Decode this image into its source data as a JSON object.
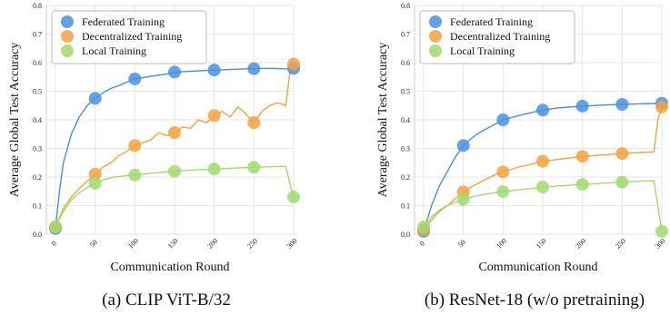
{
  "chart_data": [
    {
      "type": "line",
      "caption": "(a) CLIP ViT-B/32",
      "xlabel": "Communication Round",
      "ylabel": "Average Global Test Accuracy",
      "xlim": [
        0,
        300
      ],
      "ylim": [
        0.0,
        0.8
      ],
      "xticks": [
        "0",
        "50",
        "100",
        "150",
        "200",
        "250",
        "300"
      ],
      "yticks": [
        "0.0",
        "0.1",
        "0.2",
        "0.3",
        "0.4",
        "0.5",
        "0.6",
        "0.7",
        "0.8"
      ],
      "grid": true,
      "legend_position": "top-left",
      "series": [
        {
          "name": "Federated Training",
          "color": "#4a90e2",
          "x": [
            0,
            5,
            10,
            20,
            30,
            40,
            50,
            60,
            70,
            80,
            90,
            100,
            120,
            140,
            150,
            170,
            200,
            230,
            250,
            270,
            290,
            300
          ],
          "y": [
            0.02,
            0.15,
            0.25,
            0.35,
            0.41,
            0.45,
            0.475,
            0.495,
            0.51,
            0.52,
            0.532,
            0.543,
            0.552,
            0.56,
            0.567,
            0.57,
            0.574,
            0.577,
            0.579,
            0.58,
            0.578,
            0.58
          ],
          "markers_x": [
            0,
            50,
            100,
            150,
            200,
            250,
            300
          ],
          "markers_y": [
            0.02,
            0.475,
            0.543,
            0.567,
            0.574,
            0.579,
            0.58
          ]
        },
        {
          "name": "Decentralized Training",
          "color": "#f5a240",
          "x": [
            0,
            10,
            20,
            30,
            40,
            50,
            60,
            70,
            80,
            90,
            100,
            110,
            120,
            130,
            140,
            150,
            160,
            170,
            180,
            190,
            200,
            210,
            220,
            230,
            240,
            250,
            260,
            270,
            280,
            290,
            295,
            300
          ],
          "y": [
            0.025,
            0.09,
            0.13,
            0.16,
            0.185,
            0.21,
            0.235,
            0.25,
            0.275,
            0.29,
            0.31,
            0.32,
            0.33,
            0.355,
            0.345,
            0.355,
            0.375,
            0.37,
            0.4,
            0.39,
            0.415,
            0.43,
            0.41,
            0.445,
            0.42,
            0.39,
            0.43,
            0.45,
            0.46,
            0.45,
            0.56,
            0.595
          ],
          "markers_x": [
            0,
            50,
            100,
            150,
            200,
            250,
            300
          ],
          "markers_y": [
            0.025,
            0.21,
            0.31,
            0.355,
            0.415,
            0.39,
            0.595
          ]
        },
        {
          "name": "Local Training",
          "color": "#9fdc6e",
          "x": [
            0,
            10,
            20,
            30,
            40,
            50,
            60,
            70,
            80,
            90,
            100,
            120,
            140,
            150,
            170,
            200,
            230,
            250,
            270,
            290,
            295,
            300
          ],
          "y": [
            0.025,
            0.08,
            0.12,
            0.145,
            0.163,
            0.178,
            0.19,
            0.197,
            0.202,
            0.205,
            0.207,
            0.213,
            0.218,
            0.22,
            0.224,
            0.228,
            0.232,
            0.234,
            0.236,
            0.237,
            0.18,
            0.13
          ],
          "markers_x": [
            0,
            50,
            100,
            150,
            200,
            250,
            300
          ],
          "markers_y": [
            0.025,
            0.178,
            0.207,
            0.22,
            0.228,
            0.234,
            0.13
          ]
        }
      ]
    },
    {
      "type": "line",
      "caption": "(b) ResNet-18 (w/o pretraining)",
      "xlabel": "Communication Round",
      "ylabel": "Average Global Test Accuracy",
      "xlim": [
        0,
        300
      ],
      "ylim": [
        0.0,
        0.8
      ],
      "xticks": [
        "0",
        "50",
        "100",
        "150",
        "200",
        "250",
        "300"
      ],
      "yticks": [
        "0.0",
        "0.1",
        "0.2",
        "0.3",
        "0.4",
        "0.5",
        "0.6",
        "0.7",
        "0.8"
      ],
      "grid": true,
      "legend_position": "top-left",
      "series": [
        {
          "name": "Federated Training",
          "color": "#4a90e2",
          "x": [
            0,
            10,
            20,
            30,
            40,
            50,
            60,
            70,
            80,
            90,
            100,
            120,
            140,
            150,
            170,
            200,
            230,
            250,
            270,
            290,
            300
          ],
          "y": [
            0.01,
            0.1,
            0.17,
            0.22,
            0.27,
            0.31,
            0.335,
            0.355,
            0.37,
            0.385,
            0.4,
            0.415,
            0.428,
            0.434,
            0.442,
            0.448,
            0.452,
            0.454,
            0.456,
            0.457,
            0.458
          ],
          "markers_x": [
            0,
            50,
            100,
            150,
            200,
            250,
            300
          ],
          "markers_y": [
            0.01,
            0.31,
            0.4,
            0.434,
            0.448,
            0.454,
            0.458
          ]
        },
        {
          "name": "Decentralized Training",
          "color": "#f5a240",
          "x": [
            0,
            10,
            20,
            30,
            40,
            50,
            60,
            70,
            80,
            90,
            100,
            120,
            140,
            150,
            170,
            200,
            230,
            250,
            270,
            290,
            295,
            300
          ],
          "y": [
            0.015,
            0.05,
            0.08,
            0.1,
            0.125,
            0.148,
            0.165,
            0.18,
            0.195,
            0.208,
            0.218,
            0.235,
            0.248,
            0.255,
            0.262,
            0.272,
            0.278,
            0.282,
            0.285,
            0.288,
            0.4,
            0.445
          ],
          "markers_x": [
            0,
            50,
            100,
            150,
            200,
            250,
            300
          ],
          "markers_y": [
            0.015,
            0.148,
            0.218,
            0.255,
            0.272,
            0.282,
            0.445
          ]
        },
        {
          "name": "Local Training",
          "color": "#9fdc6e",
          "x": [
            0,
            10,
            20,
            30,
            40,
            50,
            60,
            70,
            80,
            90,
            100,
            120,
            140,
            150,
            170,
            200,
            230,
            250,
            270,
            290,
            295,
            300
          ],
          "y": [
            0.025,
            0.06,
            0.085,
            0.1,
            0.112,
            0.122,
            0.13,
            0.136,
            0.141,
            0.145,
            0.149,
            0.156,
            0.161,
            0.165,
            0.169,
            0.174,
            0.179,
            0.182,
            0.185,
            0.187,
            0.1,
            0.01
          ],
          "markers_x": [
            0,
            50,
            100,
            150,
            200,
            250,
            300
          ],
          "markers_y": [
            0.025,
            0.122,
            0.149,
            0.165,
            0.174,
            0.182,
            0.01
          ]
        }
      ]
    }
  ]
}
